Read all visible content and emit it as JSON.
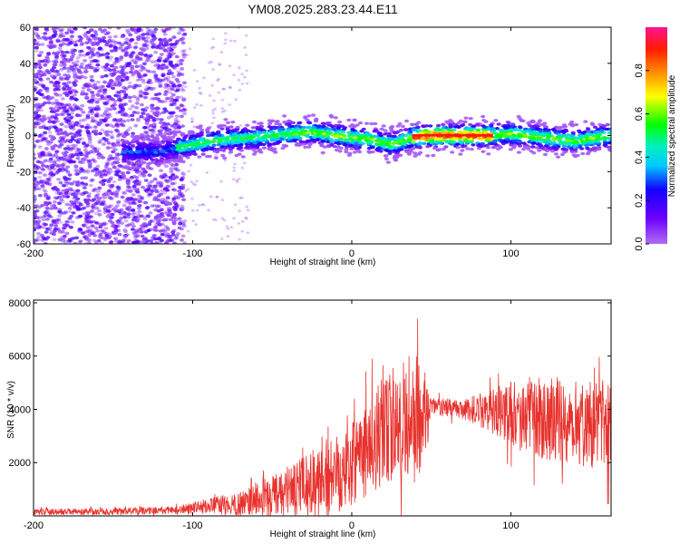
{
  "title": "YM08.2025.283.23.44.E11",
  "chart_data": [
    {
      "type": "heatmap",
      "name": "spectrogram",
      "title": "YM08.2025.283.23.44.E11",
      "xlabel": "Height of straight line (km)",
      "ylabel": "Frequency (Hz)",
      "xlim": [
        -200,
        163
      ],
      "ylim": [
        -60,
        60
      ],
      "xticks": [
        -200,
        -100,
        0,
        100
      ],
      "yticks": [
        60,
        40,
        20,
        0,
        -20,
        -40,
        -60
      ],
      "colorbar": {
        "label": "Normalized spectral amplitude",
        "range": [
          0.0,
          1.0
        ],
        "ticks": [
          0.0,
          0.2,
          0.4,
          0.6,
          0.8
        ],
        "colormap": "rainbow (magenta-violet-blue-cyan-green-yellow-red-pink)"
      },
      "signal_band": {
        "description": "Noisy violet speckle for heights below about -105 km; coherent band near 0 Hz from about -145 km to the right edge",
        "noise_region_x": [
          -200,
          -105
        ],
        "track": [
          {
            "x": -145,
            "freq": -9
          },
          {
            "x": -120,
            "freq": -9
          },
          {
            "x": -100,
            "freq": -5
          },
          {
            "x": -80,
            "freq": -2
          },
          {
            "x": -60,
            "freq": -1
          },
          {
            "x": -40,
            "freq": 1
          },
          {
            "x": -25,
            "freq": 2
          },
          {
            "x": -10,
            "freq": 0
          },
          {
            "x": 10,
            "freq": -2
          },
          {
            "x": 25,
            "freq": -5
          },
          {
            "x": 38,
            "freq": -1
          },
          {
            "x": 50,
            "freq": 0
          },
          {
            "x": 88,
            "freq": 0
          },
          {
            "x": 100,
            "freq": 1
          },
          {
            "x": 120,
            "freq": -1
          },
          {
            "x": 140,
            "freq": -3
          },
          {
            "x": 163,
            "freq": 0
          }
        ],
        "peak_segment_x": [
          38,
          88
        ]
      }
    },
    {
      "type": "line",
      "name": "snr",
      "xlabel": "Height of straight line (km)",
      "ylabel": "SNR (10 * v/v)",
      "xlim": [
        -200,
        163
      ],
      "ylim": [
        0,
        8100
      ],
      "xticks": [
        -200,
        -100,
        0,
        100
      ],
      "yticks": [
        2000,
        4000,
        6000,
        8000
      ],
      "color": "#e8322d",
      "envelope": {
        "x": [
          -200,
          -150,
          -110,
          -90,
          -70,
          -55,
          -40,
          -20,
          -10,
          0,
          10,
          20,
          30,
          40,
          45,
          50,
          70,
          90,
          110,
          130,
          150,
          163
        ],
        "mean": [
          150,
          160,
          220,
          380,
          450,
          650,
          900,
          1300,
          1700,
          2200,
          2600,
          3100,
          3500,
          3800,
          3700,
          4100,
          4000,
          3950,
          3750,
          3600,
          3400,
          3600
        ],
        "spread": [
          120,
          120,
          150,
          300,
          450,
          750,
          900,
          1400,
          1600,
          1800,
          2000,
          2100,
          2300,
          2600,
          2000,
          350,
          350,
          900,
          1500,
          1600,
          1600,
          1900
        ]
      }
    }
  ]
}
